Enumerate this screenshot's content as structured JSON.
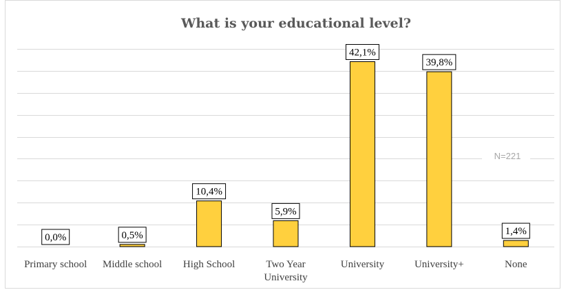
{
  "colors": {
    "bar_fill": "#FFD03E",
    "bar_stroke": "#000000",
    "grid": "#d9d9d9",
    "title": "#595959",
    "annotation": "#a6a6a6"
  },
  "chart_data": {
    "type": "bar",
    "title": "What is your educational  level?",
    "xlabel": "",
    "ylabel": "",
    "ylim": [
      0,
      45
    ],
    "grid": true,
    "legend": "none",
    "categories": [
      [
        "Primary school"
      ],
      [
        "Middle school"
      ],
      [
        "High School"
      ],
      [
        "Two Year",
        "University"
      ],
      [
        "University"
      ],
      [
        "University+"
      ],
      [
        "None"
      ]
    ],
    "values": [
      0.0,
      0.5,
      10.4,
      5.9,
      42.1,
      39.8,
      1.4
    ],
    "data_labels": [
      "0,0%",
      "0,5%",
      "10,4%",
      "5,9%",
      "42,1%",
      "39,8%",
      "1,4%"
    ],
    "annotation": "N=221"
  }
}
